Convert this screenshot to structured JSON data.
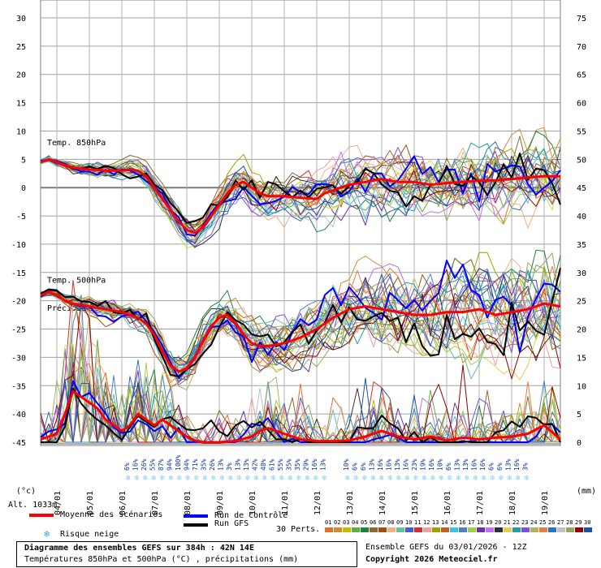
{
  "chart_data": {
    "type": "line",
    "left_axis": {
      "label": "(°c)",
      "ticks": [
        30,
        25,
        20,
        15,
        10,
        5,
        0,
        -5,
        -10,
        -15,
        -20,
        -25,
        -30,
        -35,
        -40,
        -45
      ],
      "ylim": [
        -45,
        30
      ]
    },
    "right_axis": {
      "label": "(mm)",
      "ticks": [
        75,
        70,
        65,
        60,
        55,
        50,
        45,
        40,
        35,
        30,
        25,
        20,
        15,
        10,
        5,
        0
      ],
      "ylim": [
        0,
        75
      ]
    },
    "x_dates": [
      "04/01",
      "05/01",
      "06/01",
      "07/01",
      "08/01",
      "09/01",
      "10/01",
      "11/01",
      "12/01",
      "13/01",
      "14/01",
      "15/01",
      "16/01",
      "17/01",
      "18/01",
      "19/01"
    ],
    "hours": 384,
    "step_hours": 6,
    "sections": {
      "t850": "Temp. 850hPa",
      "t500": "Temp. 500hPa",
      "precip": "Précipitations"
    },
    "mean_t850": [
      [
        0,
        4.5
      ],
      [
        6,
        5
      ],
      [
        12,
        4.5
      ],
      [
        18,
        4
      ],
      [
        24,
        3.5
      ],
      [
        36,
        3.2
      ],
      [
        48,
        3
      ],
      [
        60,
        3
      ],
      [
        66,
        3.2
      ],
      [
        72,
        3
      ],
      [
        78,
        2
      ],
      [
        84,
        0
      ],
      [
        90,
        -2
      ],
      [
        96,
        -4
      ],
      [
        102,
        -6
      ],
      [
        108,
        -7.5
      ],
      [
        114,
        -8
      ],
      [
        120,
        -7
      ],
      [
        126,
        -5
      ],
      [
        132,
        -3
      ],
      [
        138,
        -1
      ],
      [
        144,
        0.5
      ],
      [
        150,
        1
      ],
      [
        156,
        0
      ],
      [
        162,
        -1
      ],
      [
        168,
        -1.5
      ],
      [
        180,
        -1.5
      ],
      [
        192,
        -1.8
      ],
      [
        204,
        -2
      ],
      [
        210,
        -1
      ],
      [
        216,
        -0.5
      ],
      [
        228,
        0.5
      ],
      [
        240,
        1
      ],
      [
        252,
        1.5
      ],
      [
        264,
        1
      ],
      [
        276,
        1
      ],
      [
        288,
        0.5
      ],
      [
        300,
        0.8
      ],
      [
        312,
        1
      ],
      [
        324,
        1.2
      ],
      [
        336,
        1.3
      ],
      [
        348,
        1.5
      ],
      [
        360,
        1.8
      ],
      [
        372,
        2
      ],
      [
        384,
        2
      ]
    ],
    "mean_t500": [
      [
        0,
        -19
      ],
      [
        6,
        -18.5
      ],
      [
        12,
        -19
      ],
      [
        18,
        -20
      ],
      [
        24,
        -20.5
      ],
      [
        36,
        -21
      ],
      [
        48,
        -21.5
      ],
      [
        60,
        -22
      ],
      [
        72,
        -23
      ],
      [
        78,
        -24
      ],
      [
        84,
        -26
      ],
      [
        90,
        -29
      ],
      [
        96,
        -31.5
      ],
      [
        102,
        -32.5
      ],
      [
        108,
        -32
      ],
      [
        114,
        -30
      ],
      [
        120,
        -27
      ],
      [
        126,
        -24.5
      ],
      [
        132,
        -23
      ],
      [
        138,
        -22.5
      ],
      [
        144,
        -24
      ],
      [
        150,
        -26
      ],
      [
        156,
        -27.5
      ],
      [
        162,
        -28
      ],
      [
        168,
        -28
      ],
      [
        180,
        -27.5
      ],
      [
        192,
        -26.5
      ],
      [
        204,
        -25
      ],
      [
        216,
        -23
      ],
      [
        228,
        -21.5
      ],
      [
        240,
        -21
      ],
      [
        252,
        -21.5
      ],
      [
        264,
        -22
      ],
      [
        276,
        -22.5
      ],
      [
        288,
        -22.5
      ],
      [
        300,
        -22
      ],
      [
        312,
        -22
      ],
      [
        324,
        -21.5
      ],
      [
        336,
        -22.5
      ],
      [
        348,
        -22
      ],
      [
        360,
        -21.5
      ],
      [
        372,
        -20.5
      ],
      [
        384,
        -21
      ]
    ],
    "mean_precip": [
      [
        0,
        0.5
      ],
      [
        6,
        1
      ],
      [
        12,
        1.5
      ],
      [
        18,
        5
      ],
      [
        24,
        9
      ],
      [
        30,
        8
      ],
      [
        36,
        7
      ],
      [
        42,
        6
      ],
      [
        48,
        4
      ],
      [
        54,
        3
      ],
      [
        60,
        2
      ],
      [
        66,
        3
      ],
      [
        72,
        5
      ],
      [
        78,
        4
      ],
      [
        84,
        3
      ],
      [
        90,
        4
      ],
      [
        96,
        3
      ],
      [
        102,
        2
      ],
      [
        108,
        1
      ],
      [
        114,
        0.3
      ],
      [
        120,
        0
      ],
      [
        132,
        0
      ],
      [
        144,
        0.2
      ],
      [
        156,
        1
      ],
      [
        162,
        2
      ],
      [
        168,
        2.5
      ],
      [
        174,
        2
      ],
      [
        180,
        1.5
      ],
      [
        186,
        1
      ],
      [
        192,
        0.5
      ],
      [
        204,
        0.2
      ],
      [
        216,
        0.2
      ],
      [
        228,
        0.3
      ],
      [
        240,
        1
      ],
      [
        252,
        2
      ],
      [
        258,
        1.5
      ],
      [
        264,
        1
      ],
      [
        276,
        0.5
      ],
      [
        288,
        1
      ],
      [
        300,
        0.3
      ],
      [
        312,
        0.8
      ],
      [
        324,
        0.5
      ],
      [
        336,
        0.8
      ],
      [
        348,
        1
      ],
      [
        360,
        1.5
      ],
      [
        372,
        3
      ],
      [
        384,
        0.5
      ]
    ],
    "snow_risk_period1": [
      "6%",
      "16%",
      "26%",
      "55%",
      "87%",
      "94%",
      "100%",
      "94%",
      "71%",
      "35%",
      "26%",
      "13%",
      "3%",
      "13%",
      "13%",
      "42%",
      "48%",
      "61%",
      "55%",
      "35%",
      "35%",
      "29%",
      "16%",
      "13%"
    ],
    "snow_risk_period2": [
      "10%",
      "6%",
      "6%",
      "13%",
      "16%",
      "16%",
      "13%",
      "16%",
      "23%",
      "19%",
      "16%",
      "10%",
      "6%",
      "13%",
      "13%",
      "16%",
      "16%",
      "6%",
      "6%",
      "13%",
      "16%",
      "3%"
    ]
  },
  "legend": {
    "mean": "Moyenne des scénarios",
    "control": "Run de contrôle",
    "gfs": "Run GFS",
    "snow": "Risque neige",
    "perts_label": "30 Perts.",
    "pert_numbers": [
      "01",
      "02",
      "03",
      "04",
      "05",
      "06",
      "07",
      "08",
      "09",
      "10",
      "11",
      "12",
      "13",
      "14",
      "15",
      "16",
      "17",
      "18",
      "19",
      "20",
      "21",
      "22",
      "23",
      "24",
      "25",
      "26",
      "27",
      "28",
      "29",
      "30"
    ],
    "pert_colors": [
      "#e07030",
      "#d09030",
      "#c0c000",
      "#60b040",
      "#208040",
      "#8a6a30",
      "#a05010",
      "#f0b080",
      "#60c0a0",
      "#4060d0",
      "#d03030",
      "#f0a0a0",
      "#a0a000",
      "#c06020",
      "#40c0f0",
      "#5080c0",
      "#a0d040",
      "#7030a0",
      "#c070f0",
      "#303030",
      "#e0d050",
      "#20a0a0",
      "#8050d0",
      "#b0b060",
      "#e08040",
      "#3070c0",
      "#c0c0c0",
      "#a0a060",
      "#900000",
      "#2050a0"
    ]
  },
  "footer": {
    "alt": "Alt. 1033m",
    "title": "Diagramme des ensembles GEFS sur 384h : 42N 14E",
    "subtitle": "Températures 850hPa et 500hPa (°C) , précipitations (mm)",
    "run": "Ensemble GEFS du 03/01/2026 - 12Z",
    "copyright": "Copyright 2026 Meteociel.fr"
  },
  "colors": {
    "mean": "#ff0000",
    "control": "#0000ff",
    "gfs": "#000000",
    "snow": "#8ad0f0"
  }
}
